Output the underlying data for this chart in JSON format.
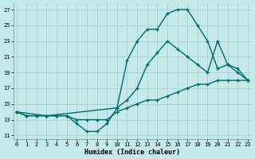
{
  "xlabel": "Humidex (Indice chaleur)",
  "background_color": "#c5e8e8",
  "grid_color": "#aed4d4",
  "line_color": "#006b6b",
  "xlim": [
    -0.3,
    23.3
  ],
  "ylim": [
    10.5,
    27.8
  ],
  "xticks": [
    0,
    1,
    2,
    3,
    4,
    5,
    6,
    7,
    8,
    9,
    10,
    11,
    12,
    13,
    14,
    15,
    16,
    17,
    18,
    19,
    20,
    21,
    22,
    23
  ],
  "yticks": [
    11,
    13,
    15,
    17,
    19,
    21,
    23,
    25,
    27
  ],
  "line1_x": [
    0,
    1,
    2,
    3,
    4,
    5,
    6,
    7,
    8,
    9,
    10,
    11,
    12,
    13,
    14,
    15,
    16,
    17,
    18,
    19,
    20,
    21,
    22,
    23
  ],
  "line1_y": [
    14,
    13.5,
    13.5,
    13.5,
    13.5,
    13.5,
    12.5,
    11.5,
    11.5,
    12.5,
    14.5,
    20.5,
    23,
    24.5,
    24.5,
    26.5,
    27,
    27,
    25,
    23,
    19.5,
    20,
    19,
    18
  ],
  "line2_x": [
    0,
    1,
    2,
    3,
    4,
    5,
    6,
    7,
    8,
    9,
    10,
    11,
    12,
    13,
    14,
    15,
    16,
    17,
    18,
    19,
    20,
    21,
    22,
    23
  ],
  "line2_y": [
    14,
    13.5,
    13.5,
    13.5,
    13.5,
    13.5,
    13,
    13,
    13,
    13,
    14,
    14.5,
    15,
    15.5,
    15.5,
    16,
    16.5,
    17,
    17.5,
    17.5,
    18,
    18,
    18,
    18
  ],
  "line3_x": [
    0,
    3,
    10,
    11,
    12,
    13,
    14,
    15,
    16,
    17,
    18,
    19,
    20,
    21,
    22,
    23
  ],
  "line3_y": [
    14,
    13.5,
    14.5,
    15.5,
    17,
    20,
    21.5,
    23,
    22,
    21,
    20,
    19,
    23,
    20,
    19.5,
    18
  ]
}
